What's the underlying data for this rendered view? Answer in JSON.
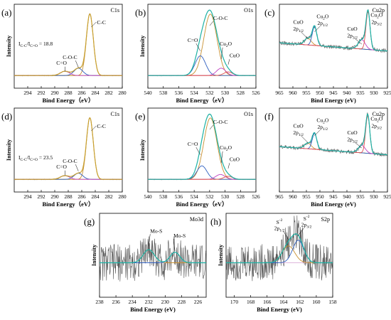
{
  "palette": {
    "fit": "#c8a030",
    "envelope": "#1db3a6",
    "raw": "#555555",
    "bg": "#d4a0d0",
    "peak1": "#c89030",
    "peak2": "#3060c0",
    "peak3": "#c040c0",
    "peak4": "#e05050",
    "peak5": "#60c0e0"
  },
  "chart_data": [
    {
      "id": "a",
      "type": "line",
      "panel_label": "(a)",
      "core_level": "C1s",
      "xlabel": "Bind Energy（eV）",
      "ylabel": "Intensity",
      "xlim": [
        296,
        280
      ],
      "xticks": [
        "294",
        "292",
        "290",
        "288",
        "286",
        "284",
        "282",
        "280"
      ],
      "reverse_x": true,
      "peaks": [
        {
          "name": "C-C",
          "center": 284.8,
          "fwhm": 1.2,
          "height": 1.0
        },
        {
          "name": "C-O-C",
          "center": 286.5,
          "fwhm": 1.5,
          "height": 0.12
        },
        {
          "name": "C=O",
          "center": 288.5,
          "fwhm": 1.6,
          "height": 0.07
        }
      ],
      "annotations": [
        "C-C",
        "C-O-C",
        "C=O",
        "I_{C-C}/I_{C=O} = 18.8"
      ]
    },
    {
      "id": "b",
      "type": "line",
      "panel_label": "(b)",
      "core_level": "O1s",
      "xlabel": "Bind Energy（eV）",
      "ylabel": "Intensity",
      "xlim": [
        540,
        526
      ],
      "xticks": [
        "540",
        "538",
        "536",
        "534",
        "532",
        "530",
        "528",
        "526"
      ],
      "reverse_x": true,
      "peaks": [
        {
          "name": "C-O-C",
          "center": 531.9,
          "fwhm": 2.0,
          "height": 1.0
        },
        {
          "name": "C=O",
          "center": 533.2,
          "fwhm": 1.6,
          "height": 0.32
        },
        {
          "name": "Cu2O",
          "center": 530.5,
          "fwhm": 1.4,
          "height": 0.12
        },
        {
          "name": "CuO",
          "center": 529.6,
          "fwhm": 1.3,
          "height": 0.06
        }
      ],
      "annotations": [
        "C-O-C",
        "C=O",
        "Cu2O",
        "CuO"
      ]
    },
    {
      "id": "c",
      "type": "line",
      "panel_label": "(c)",
      "core_level": "Cu2p",
      "xlabel": "Bind Energy (eV)",
      "ylabel": "",
      "xlim": [
        965,
        925
      ],
      "xticks": [
        "965",
        "960",
        "955",
        "950",
        "945",
        "940",
        "935",
        "930",
        "925"
      ],
      "reverse_x": true,
      "peaks": [
        {
          "name": "CuO 2p1/2",
          "center": 954.5,
          "fwhm": 3.0,
          "height": 0.18
        },
        {
          "name": "Cu2O 2p1/2",
          "center": 952.0,
          "fwhm": 2.0,
          "height": 0.5
        },
        {
          "name": "CuO 2p3/2",
          "center": 934.5,
          "fwhm": 3.0,
          "height": 0.25
        },
        {
          "name": "Cu2O 2p3/2",
          "center": 932.2,
          "fwhm": 1.8,
          "height": 1.0
        }
      ],
      "annotations": [
        "CuO 2p1/2",
        "Cu2O 2p1/2",
        "CuO 2p3/2",
        "Cu2O 2p3/2"
      ]
    },
    {
      "id": "d",
      "type": "line",
      "panel_label": "(d)",
      "core_level": "C1s",
      "xlabel": "Bind Energy（eV）",
      "ylabel": "Intensity",
      "xlim": [
        296,
        280
      ],
      "xticks": [
        "294",
        "292",
        "290",
        "288",
        "286",
        "284",
        "282",
        "280"
      ],
      "reverse_x": true,
      "peaks": [
        {
          "name": "C-C",
          "center": 284.8,
          "fwhm": 1.2,
          "height": 1.0
        },
        {
          "name": "C-O-C",
          "center": 286.5,
          "fwhm": 1.5,
          "height": 0.1
        },
        {
          "name": "C=O",
          "center": 288.5,
          "fwhm": 1.6,
          "height": 0.06
        }
      ],
      "annotations": [
        "C-C",
        "C-O-C",
        "C=O",
        "I_{C-C}/I_{C=O} = 23.5"
      ]
    },
    {
      "id": "e",
      "type": "line",
      "panel_label": "(e)",
      "core_level": "O1s",
      "xlabel": "Bind Energy（eV）",
      "ylabel": "Intensity",
      "xlim": [
        540,
        526
      ],
      "xticks": [
        "540",
        "538",
        "536",
        "534",
        "532",
        "530",
        "528",
        "526"
      ],
      "reverse_x": true,
      "peaks": [
        {
          "name": "C-O-C",
          "center": 531.9,
          "fwhm": 2.0,
          "height": 1.0
        },
        {
          "name": "C=O",
          "center": 533.0,
          "fwhm": 1.5,
          "height": 0.22
        },
        {
          "name": "Cu2O",
          "center": 530.6,
          "fwhm": 1.4,
          "height": 0.08
        },
        {
          "name": "CuO",
          "center": 529.6,
          "fwhm": 1.3,
          "height": 0.05
        }
      ],
      "annotations": [
        "C-O-C",
        "C=O",
        "Cu2O",
        "CuO"
      ]
    },
    {
      "id": "f",
      "type": "line",
      "panel_label": "(f)",
      "core_level": "Cu2p",
      "xlabel": "Bind Energy (eV)",
      "ylabel": "",
      "xlim": [
        965,
        925
      ],
      "xticks": [
        "965",
        "960",
        "955",
        "950",
        "945",
        "940",
        "935",
        "930",
        "925"
      ],
      "reverse_x": true,
      "peaks": [
        {
          "name": "CuO 2p1/2",
          "center": 954.5,
          "fwhm": 3.0,
          "height": 0.15
        },
        {
          "name": "Cu2O 2p1/2",
          "center": 952.0,
          "fwhm": 2.0,
          "height": 0.42
        },
        {
          "name": "CuO 2p3/2",
          "center": 934.5,
          "fwhm": 3.0,
          "height": 0.2
        },
        {
          "name": "Cu2O 2p3/2",
          "center": 932.3,
          "fwhm": 1.8,
          "height": 1.0
        }
      ],
      "annotations": [
        "CuO 2p1/2",
        "Cu2O 2p1/2",
        "CuO 2p3/2",
        "Cu2O 2p3/2"
      ]
    },
    {
      "id": "g",
      "type": "line",
      "panel_label": "(g)",
      "core_level": "Mo3d",
      "xlabel": "Bind Energy (eV)",
      "ylabel": "Intensity",
      "xlim": [
        238,
        225
      ],
      "xticks": [
        "238",
        "236",
        "234",
        "232",
        "230",
        "228",
        "226"
      ],
      "reverse_x": true,
      "peaks": [
        {
          "name": "Mo-S",
          "center": 232.0,
          "fwhm": 1.6,
          "height": 0.35
        },
        {
          "name": "Mo-S",
          "center": 228.8,
          "fwhm": 1.4,
          "height": 0.28
        }
      ],
      "annotations": [
        "Mo-S",
        "Mo-S"
      ]
    },
    {
      "id": "h",
      "type": "line",
      "panel_label": "(h)",
      "core_level": "S2p",
      "xlabel": "Bind Energy (eV)",
      "ylabel": "Intensity",
      "xlim": [
        171,
        158
      ],
      "xticks": [
        "170",
        "168",
        "166",
        "164",
        "162",
        "160",
        "158"
      ],
      "reverse_x": true,
      "peaks": [
        {
          "name": "S2- 2p1/2",
          "center": 163.4,
          "fwhm": 1.8,
          "height": 0.45
        },
        {
          "name": "S2- 2p3/2",
          "center": 162.2,
          "fwhm": 1.6,
          "height": 0.6
        }
      ],
      "annotations": [
        "S-2 2p1/2",
        "S-2 2p3/2"
      ]
    }
  ]
}
